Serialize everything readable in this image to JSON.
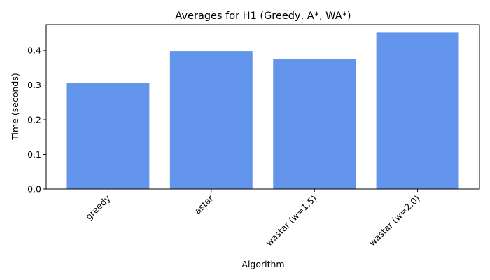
{
  "chart_data": {
    "type": "bar",
    "title": "Averages for H1 (Greedy, A*, WA*)",
    "xlabel": "Algorithm",
    "ylabel": "Time (seconds)",
    "categories": [
      "greedy",
      "astar",
      "wastar (w=1.5)",
      "wastar (w=2.0)"
    ],
    "values": [
      0.306,
      0.398,
      0.375,
      0.452
    ],
    "ylim": [
      0,
      0.475
    ],
    "yticks": [
      "0.0",
      "0.1",
      "0.2",
      "0.3",
      "0.4"
    ],
    "bar_color": "#6495ED",
    "grid": false
  }
}
